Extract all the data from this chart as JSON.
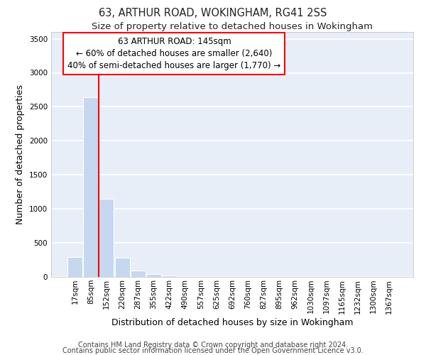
{
  "title1": "63, ARTHUR ROAD, WOKINGHAM, RG41 2SS",
  "title2": "Size of property relative to detached houses in Wokingham",
  "xlabel": "Distribution of detached houses by size in Wokingham",
  "ylabel": "Number of detached properties",
  "categories": [
    "17sqm",
    "85sqm",
    "152sqm",
    "220sqm",
    "287sqm",
    "355sqm",
    "422sqm",
    "490sqm",
    "557sqm",
    "625sqm",
    "692sqm",
    "760sqm",
    "827sqm",
    "895sqm",
    "962sqm",
    "1030sqm",
    "1097sqm",
    "1165sqm",
    "1232sqm",
    "1300sqm",
    "1367sqm"
  ],
  "values": [
    290,
    2640,
    1145,
    285,
    90,
    45,
    20,
    0,
    0,
    0,
    0,
    0,
    0,
    0,
    0,
    0,
    0,
    0,
    0,
    0,
    0
  ],
  "bar_color": "#c5d8f0",
  "bar_edge_color": "#aec6e8",
  "vline_x": 1.5,
  "vline_color": "red",
  "annotation_box_text": "63 ARTHUR ROAD: 145sqm\n← 60% of detached houses are smaller (2,640)\n40% of semi-detached houses are larger (1,770) →",
  "ylim": [
    0,
    3600
  ],
  "yticks": [
    0,
    500,
    1000,
    1500,
    2000,
    2500,
    3000,
    3500
  ],
  "background_color": "#e8eef8",
  "grid_color": "#ffffff",
  "footer1": "Contains HM Land Registry data © Crown copyright and database right 2024.",
  "footer2": "Contains public sector information licensed under the Open Government Licence v3.0.",
  "title1_fontsize": 10.5,
  "title2_fontsize": 9.5,
  "axis_label_fontsize": 9,
  "tick_fontsize": 7.5,
  "annotation_fontsize": 8.5,
  "footer_fontsize": 7
}
